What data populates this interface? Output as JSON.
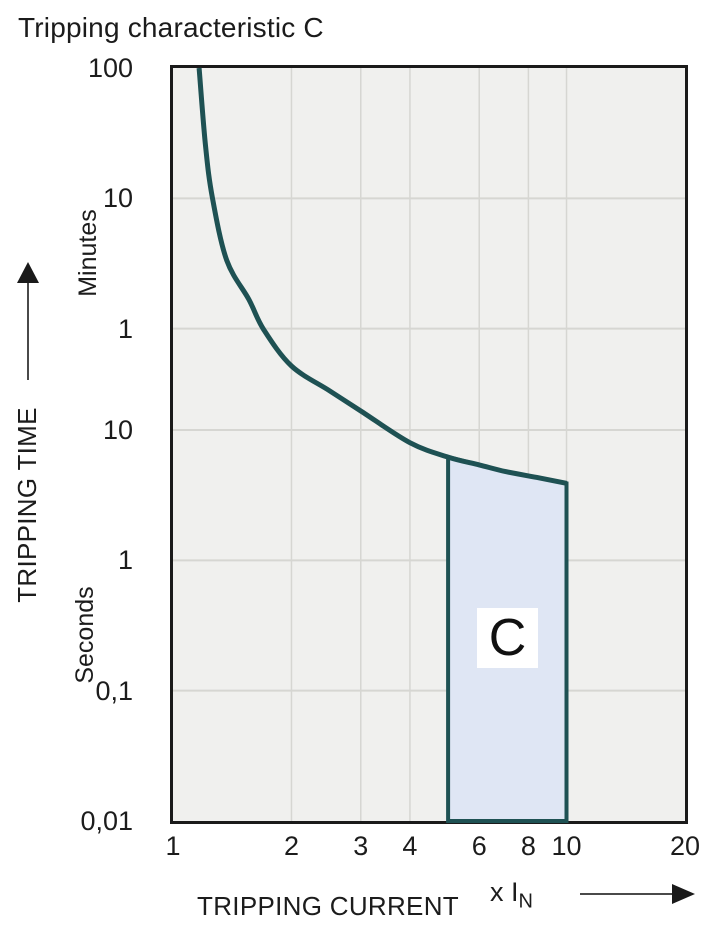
{
  "title": "Tripping characteristic C",
  "y_axis": {
    "label": "TRIPPING TIME",
    "unit_upper": "Minutes",
    "unit_lower": "Seconds",
    "ticks": [
      {
        "label": "100",
        "seconds": 6000
      },
      {
        "label": "10",
        "seconds": 600
      },
      {
        "label": "1",
        "seconds": 60
      },
      {
        "label": "10",
        "seconds": 10
      },
      {
        "label": "1",
        "seconds": 1
      },
      {
        "label": "0,1",
        "seconds": 0.1
      },
      {
        "label": "0,01",
        "seconds": 0.01
      }
    ]
  },
  "x_axis": {
    "label": "TRIPPING CURRENT",
    "unit": "x I",
    "unit_sub": "N",
    "ticks": [
      {
        "label": "1",
        "value": 1
      },
      {
        "label": "2",
        "value": 2
      },
      {
        "label": "3",
        "value": 3
      },
      {
        "label": "4",
        "value": 4
      },
      {
        "label": "6",
        "value": 6
      },
      {
        "label": "8",
        "value": 8
      },
      {
        "label": "10",
        "value": 10
      },
      {
        "label": "20",
        "value": 20
      }
    ]
  },
  "chart_data": {
    "type": "line",
    "title": "Tripping characteristic C",
    "xlabel": "TRIPPING CURRENT (x IN)",
    "ylabel": "TRIPPING TIME (minutes above 1, seconds below)",
    "x_scale": "log",
    "y_scale": "log",
    "x_range": [
      1,
      20
    ],
    "t_range_seconds": [
      6000,
      0.01
    ],
    "grid": {
      "x_values": [
        2,
        3,
        4,
        6,
        8,
        10
      ],
      "t_values_seconds": [
        600,
        60,
        10,
        1,
        0.1
      ]
    },
    "curve": {
      "name": "thermal-trip-curve",
      "points": [
        [
          1.165,
          6000
        ],
        [
          1.21,
          1500
        ],
        [
          1.26,
          600
        ],
        [
          1.37,
          200
        ],
        [
          1.56,
          100
        ],
        [
          1.7,
          59
        ],
        [
          2.0,
          31
        ],
        [
          2.5,
          20
        ],
        [
          3.0,
          14
        ],
        [
          4.0,
          8.0
        ],
        [
          5.0,
          6.2
        ],
        [
          6.0,
          5.4
        ],
        [
          7.0,
          4.8
        ],
        [
          8.5,
          4.3
        ],
        [
          10.0,
          3.9
        ]
      ]
    },
    "region": {
      "label": "C",
      "x_from": 5,
      "x_to": 10,
      "t_bottom": 0.01
    }
  },
  "colors": {
    "curve_teal": "#1e5153",
    "region_fill": "#dfe6f4",
    "plot_background": "#f0f0ee",
    "gridline": "#d6d6d2",
    "plot_border": "#1a1a1a",
    "text": "#1c1c1c"
  }
}
